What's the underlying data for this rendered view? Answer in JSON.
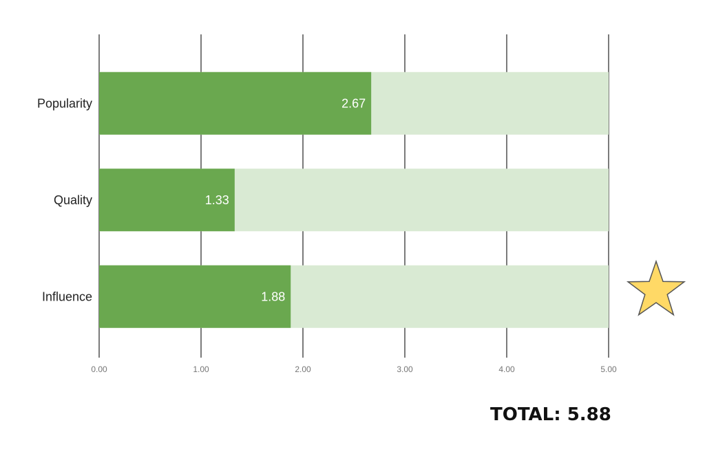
{
  "chart_data": {
    "type": "bar",
    "orientation": "horizontal",
    "categories": [
      "Popularity",
      "Quality",
      "Influence"
    ],
    "values": [
      2.67,
      1.33,
      1.88
    ],
    "value_labels": [
      "2.67",
      "1.33",
      "1.88"
    ],
    "xlim": [
      0,
      5
    ],
    "xticks": [
      "0.00",
      "1.00",
      "2.00",
      "3.00",
      "4.00",
      "5.00"
    ],
    "grid": true,
    "title": "",
    "xlabel": "",
    "ylabel": "",
    "colors": {
      "bar": "#6aa84f",
      "track": "#d9ead3",
      "grid": "#333333"
    }
  },
  "total": {
    "label": "TOTAL: 5.88"
  },
  "decoration": {
    "icon": "star-icon",
    "color": "#ffd966",
    "stroke": "#555555"
  }
}
